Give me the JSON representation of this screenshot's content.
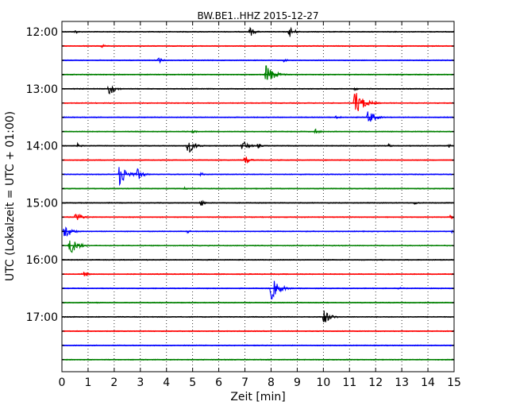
{
  "chart_data": {
    "type": "line",
    "title": "BW.BE1..HHZ 2015-12-27",
    "xlabel": "Zeit  [min]",
    "ylabel": "UTC (Lokalzeit = UTC + 01:00)",
    "xlim": [
      0,
      15
    ],
    "x_ticks": [
      "0",
      "1",
      "2",
      "3",
      "4",
      "5",
      "6",
      "7",
      "8",
      "9",
      "10",
      "11",
      "12",
      "13",
      "14",
      "15"
    ],
    "y_ticks": [
      "12:00",
      "13:00",
      "14:00",
      "15:00",
      "16:00",
      "17:00"
    ],
    "grid": "vertical dotted",
    "trace_colors": [
      "#000000",
      "#ff0000",
      "#0000ff",
      "#008000"
    ],
    "traces": [
      {
        "start": "12:00",
        "events": [
          {
            "t": 0.5,
            "a": 0.35
          },
          {
            "t": 7.2,
            "a": 0.7
          },
          {
            "t": 8.7,
            "a": 0.85
          }
        ]
      },
      {
        "start": "12:15",
        "events": [
          {
            "t": 1.5,
            "a": 0.35
          }
        ]
      },
      {
        "start": "12:30",
        "events": [
          {
            "t": 3.7,
            "a": 0.45
          },
          {
            "t": 8.5,
            "a": 0.3
          }
        ]
      },
      {
        "start": "12:45",
        "events": [
          {
            "t": 7.8,
            "a": 1.6
          }
        ]
      },
      {
        "start": "13:00",
        "events": [
          {
            "t": 1.8,
            "a": 1.0
          },
          {
            "t": 11.2,
            "a": 0.3
          }
        ]
      },
      {
        "start": "13:15",
        "events": [
          {
            "t": 11.2,
            "a": 1.9
          }
        ]
      },
      {
        "start": "13:30",
        "events": [
          {
            "t": 10.5,
            "a": 0.4
          },
          {
            "t": 11.7,
            "a": 1.2
          }
        ]
      },
      {
        "start": "13:45",
        "events": [
          {
            "t": 5.0,
            "a": 0.35
          },
          {
            "t": 9.7,
            "a": 0.5
          }
        ]
      },
      {
        "start": "14:00",
        "events": [
          {
            "t": 0.6,
            "a": 0.35
          },
          {
            "t": 4.8,
            "a": 1.3
          },
          {
            "t": 6.9,
            "a": 0.9
          },
          {
            "t": 7.5,
            "a": 0.4
          },
          {
            "t": 12.5,
            "a": 0.3
          },
          {
            "t": 14.8,
            "a": 0.3
          }
        ]
      },
      {
        "start": "14:15",
        "events": [
          {
            "t": 7.0,
            "a": 0.7
          }
        ]
      },
      {
        "start": "14:30",
        "events": [
          {
            "t": 2.2,
            "a": 1.6
          },
          {
            "t": 2.9,
            "a": 0.9
          },
          {
            "t": 5.3,
            "a": 0.35
          }
        ]
      },
      {
        "start": "14:45",
        "events": [
          {
            "t": 4.7,
            "a": 0.25
          }
        ]
      },
      {
        "start": "15:00",
        "events": [
          {
            "t": 5.3,
            "a": 0.55
          },
          {
            "t": 13.5,
            "a": 0.35
          }
        ]
      },
      {
        "start": "15:15",
        "events": [
          {
            "t": 0.5,
            "a": 0.9
          },
          {
            "t": 14.8,
            "a": 0.6
          }
        ]
      },
      {
        "start": "15:30",
        "events": [
          {
            "t": 0.1,
            "a": 1.2
          },
          {
            "t": 4.8,
            "a": 0.3
          },
          {
            "t": 14.9,
            "a": 0.3
          }
        ]
      },
      {
        "start": "15:45",
        "events": [
          {
            "t": 0.3,
            "a": 1.4
          }
        ]
      },
      {
        "start": "16:00",
        "events": []
      },
      {
        "start": "16:15",
        "events": [
          {
            "t": 0.8,
            "a": 0.6
          }
        ]
      },
      {
        "start": "16:30",
        "events": [
          {
            "t": 8.0,
            "a": 1.7
          },
          {
            "t": 12.9,
            "a": 0.35
          }
        ]
      },
      {
        "start": "16:45",
        "events": []
      },
      {
        "start": "17:00",
        "events": [
          {
            "t": 10.0,
            "a": 1.2
          }
        ]
      },
      {
        "start": "17:15",
        "events": []
      },
      {
        "start": "17:30",
        "events": []
      },
      {
        "start": "17:45",
        "events": []
      }
    ]
  }
}
